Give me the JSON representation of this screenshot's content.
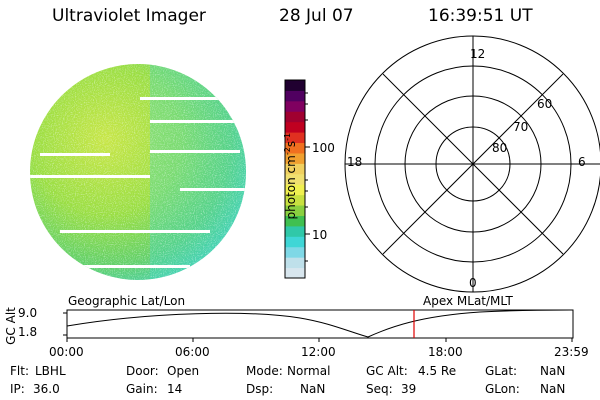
{
  "header": {
    "instrument": "Ultraviolet Imager",
    "date": "28 Jul 07",
    "time": "16:39:51 UT"
  },
  "colorbar": {
    "label_prefix": "photon cm",
    "label_exp1": "-2",
    "label_mid": "s",
    "label_exp2": "-1",
    "tick_high": "100",
    "tick_low": "10",
    "colors": [
      "#d8e6ee",
      "#bfe0ea",
      "#7fd8e6",
      "#3fd6d6",
      "#30c8a8",
      "#40c050",
      "#8ad040",
      "#c8e040",
      "#f0f050",
      "#f0e070",
      "#f0d060",
      "#f0a030",
      "#f07020",
      "#e03020",
      "#c00020",
      "#a00030",
      "#800060",
      "#500060",
      "#200030"
    ]
  },
  "polar": {
    "label_top": "12",
    "label_bottom": "0",
    "label_left": "18",
    "label_right": "6",
    "ring_60": "60",
    "ring_70": "70",
    "ring_80": "80"
  },
  "timeline": {
    "geo_label": "Geographic Lat/Lon",
    "apex_label": "Apex MLat/MLT",
    "y_axis_label": "GC Alt",
    "y_max": "9.0",
    "y_min": "1.8",
    "x_ticks": [
      "00:00",
      "06:00",
      "12:00",
      "18:00",
      "23:59"
    ],
    "marker_color": "#e00000"
  },
  "status": {
    "flt_label": "Flt:",
    "flt_value": "LBHL",
    "ip_label": "IP:",
    "ip_value": "36.0",
    "door_label": "Door:",
    "door_value": "Open",
    "gain_label": "Gain:",
    "gain_value": "14",
    "mode_label": "Mode:",
    "mode_value": "Normal",
    "dsp_label": "Dsp:",
    "dsp_value": "NaN",
    "gcalt_label": "GC Alt:",
    "gcalt_value": "4.5 Re",
    "seq_label": "Seq:",
    "seq_value": "39",
    "glat_label": "GLat:",
    "glat_value": "NaN",
    "glon_label": "GLon:",
    "glon_value": "NaN"
  }
}
